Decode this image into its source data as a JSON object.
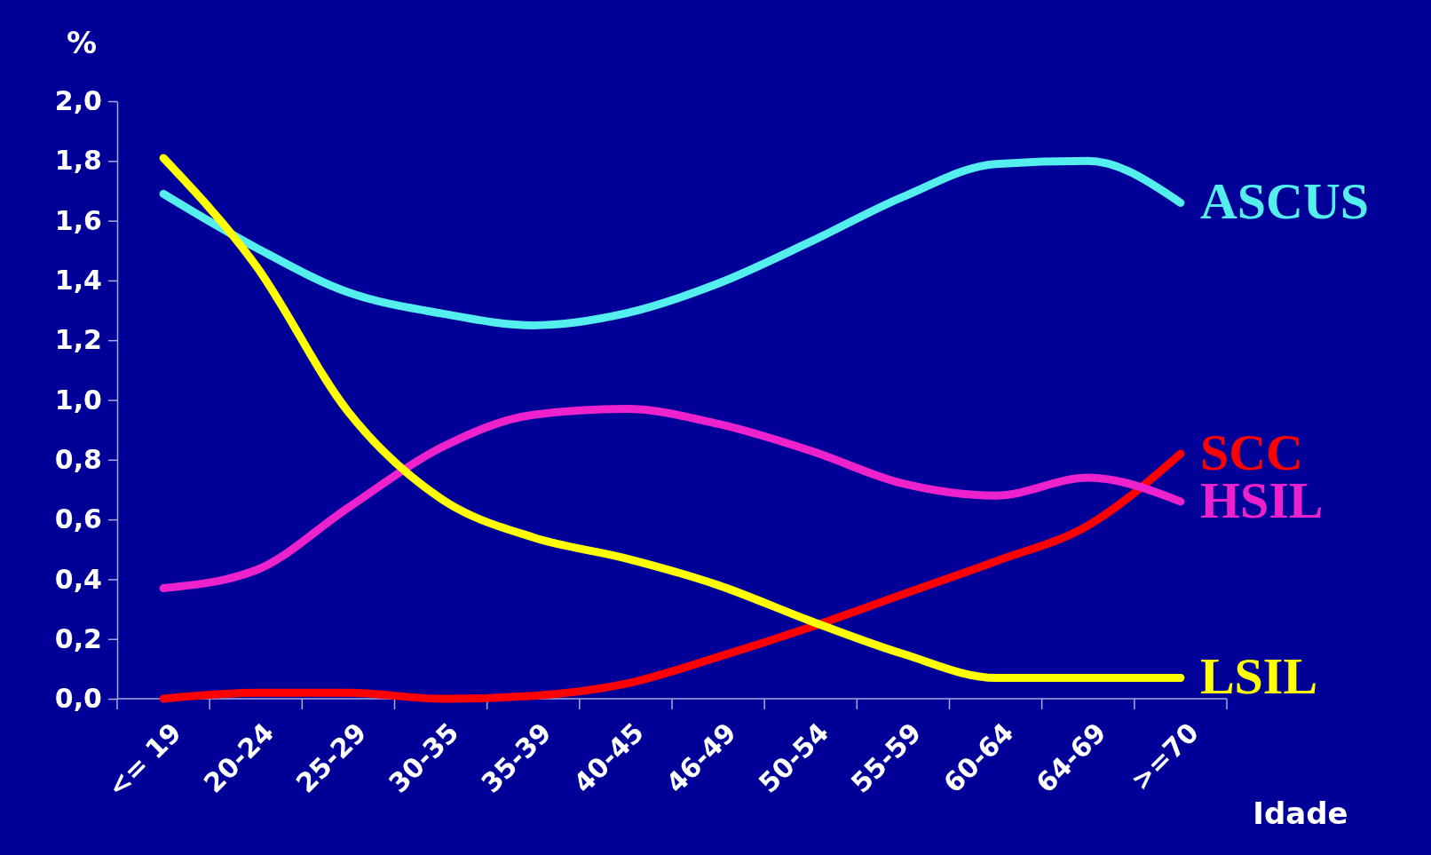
{
  "chart_data": {
    "type": "line",
    "ylabel": "%",
    "xlabel": "Idade",
    "categories": [
      "<= 19",
      "20-24",
      "25-29",
      "30-35",
      "35-39",
      "40-45",
      "46-49",
      "50-54",
      "55-59",
      "60-64",
      "64-69",
      ">=70"
    ],
    "series": [
      {
        "name": "ASCUS",
        "color": "#55eeee",
        "values": [
          1.69,
          1.51,
          1.36,
          1.29,
          1.25,
          1.29,
          1.39,
          1.53,
          1.68,
          1.79,
          1.8,
          1.66
        ]
      },
      {
        "name": "SCC",
        "color": "#ff0000",
        "values": [
          0.0,
          0.02,
          0.02,
          0.0,
          0.01,
          0.05,
          0.14,
          0.24,
          0.35,
          0.46,
          0.58,
          0.82
        ]
      },
      {
        "name": "HSIL",
        "color": "#ee22cc",
        "values": [
          0.37,
          0.43,
          0.64,
          0.84,
          0.95,
          0.97,
          0.92,
          0.83,
          0.72,
          0.68,
          0.74,
          0.66
        ]
      },
      {
        "name": "LSIL",
        "color": "#ffff00",
        "values": [
          1.81,
          1.45,
          0.96,
          0.67,
          0.54,
          0.47,
          0.38,
          0.26,
          0.15,
          0.07,
          0.07,
          0.07
        ]
      }
    ],
    "ylim": [
      0,
      2
    ],
    "yticks": [
      {
        "value": 0,
        "label": "0,0"
      },
      {
        "value": 0.2,
        "label": "0,2"
      },
      {
        "value": 0.4,
        "label": "0,4"
      },
      {
        "value": 0.6,
        "label": "0,6"
      },
      {
        "value": 0.8,
        "label": "0,8"
      },
      {
        "value": 1,
        "label": "1,0"
      },
      {
        "value": 1.2,
        "label": "1,2"
      },
      {
        "value": 1.4,
        "label": "1,4"
      },
      {
        "value": 1.6,
        "label": "1,6"
      },
      {
        "value": 1.8,
        "label": "1,8"
      },
      {
        "value": 2,
        "label": "2,0"
      }
    ],
    "grid": false,
    "legend": false,
    "marker": "none",
    "line_style": "solid"
  }
}
